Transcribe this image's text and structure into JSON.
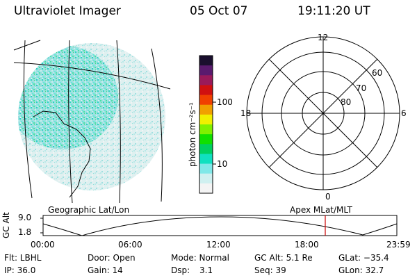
{
  "header": {
    "title": "Ultraviolet Imager",
    "date": "05 Oct 07",
    "time": "19:11:20 UT"
  },
  "panels": {
    "geo_label": "Geographic Lat/Lon",
    "apex_label": "Apex  MLat/MLT"
  },
  "colorbar": {
    "unit_label": "photon cm⁻²s⁻¹",
    "ticks": [
      "100",
      "10"
    ],
    "colors": [
      "#1a0f2e",
      "#5a1a6e",
      "#9a1a5a",
      "#d01010",
      "#f04000",
      "#f0a000",
      "#f0f000",
      "#80f000",
      "#10e000",
      "#00d060",
      "#10e0c0",
      "#80e8e8",
      "#d0f0f0",
      "#f4f4f4"
    ]
  },
  "polar": {
    "mlt_labels": {
      "top": "12",
      "left": "18",
      "right": "6",
      "bottom": "0"
    },
    "lat_labels": [
      "60",
      "70",
      "80"
    ]
  },
  "altitude_plot": {
    "ylabel": "GC Alt",
    "yticks": [
      "9.0",
      "1.8"
    ],
    "xticks": [
      "00:00",
      "06:00",
      "12:00",
      "18:00",
      "23:59"
    ],
    "marker_color": "#cc0000"
  },
  "info": {
    "row1": {
      "flt": "Flt: LBHL",
      "door": "Door: Open",
      "mode": "Mode: Normal",
      "gcalt": "GC Alt: 5.1 Re",
      "glat": "GLat: −35.4"
    },
    "row2": {
      "ip": "IP: 36.0",
      "gain": "Gain: 14",
      "dsp_label": "Dsp:",
      "dsp_value": "3.1",
      "seq": "Seq: 39",
      "glon": "GLon:  32.7"
    }
  }
}
